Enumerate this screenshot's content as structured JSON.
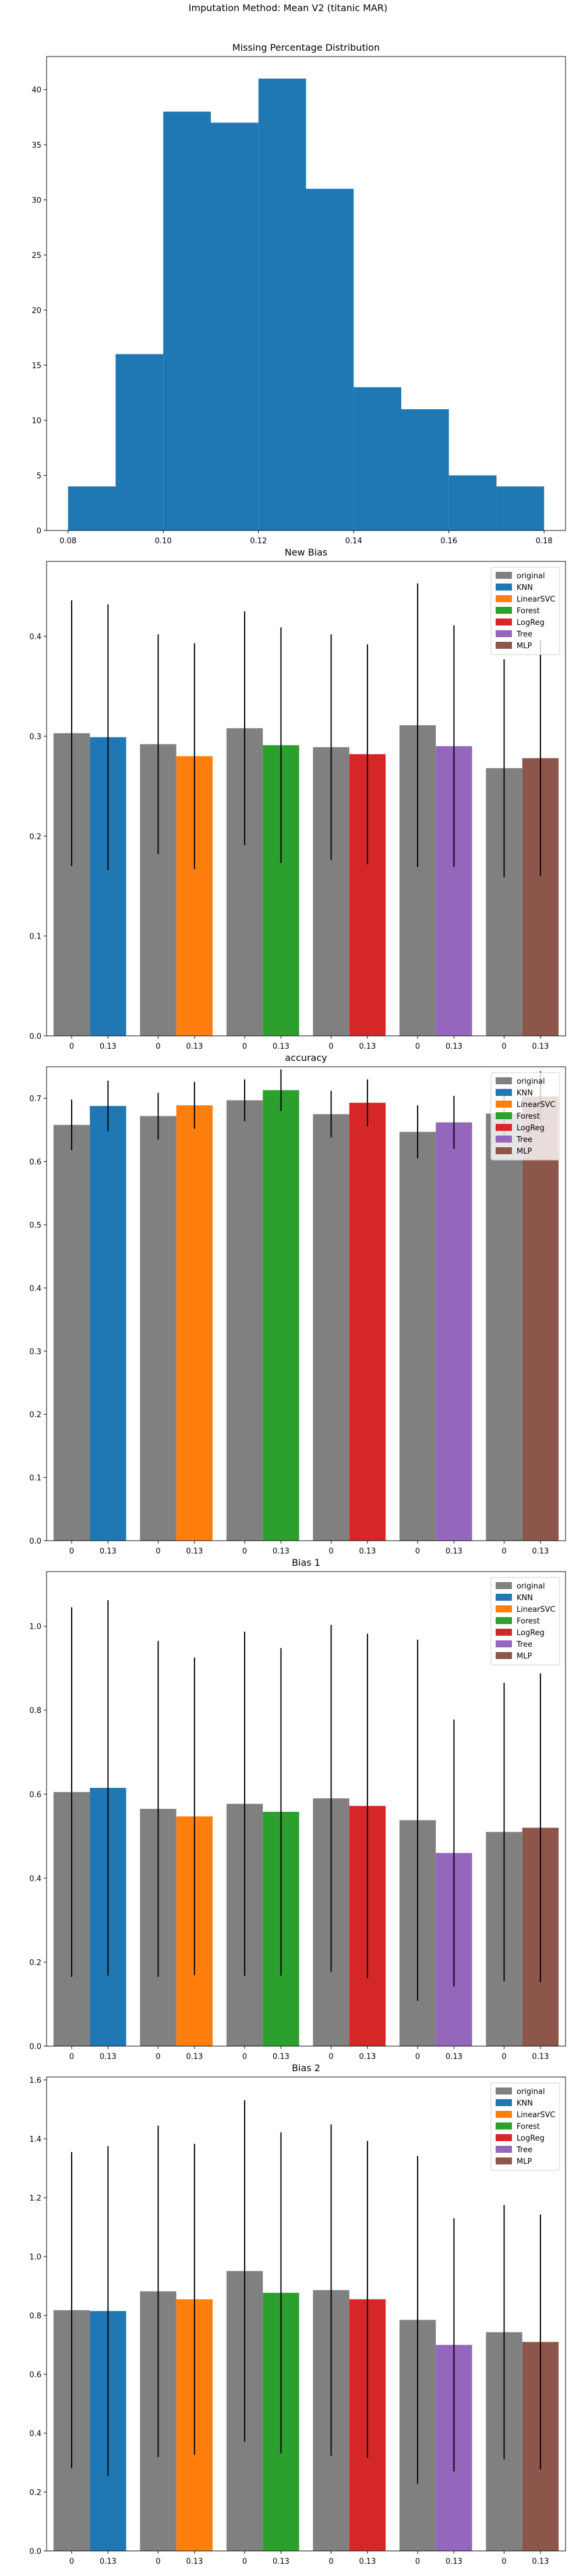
{
  "suptitle": "Imputation Method: Mean V2 (titanic MAR)",
  "legend_labels": [
    "original",
    "KNN",
    "LinearSVC",
    "Forest",
    "LogReg",
    "Tree",
    "MLP"
  ],
  "colors": {
    "original": "#808080",
    "KNN": "#1f77b4",
    "LinearSVC": "#ff7f0e",
    "Forest": "#2ca02c",
    "LogReg": "#d62728",
    "Tree": "#9467bd",
    "MLP": "#8c564b",
    "histogram": "#1f77b4"
  },
  "chart_data": [
    {
      "type": "histogram",
      "title": "Missing Percentage Distribution",
      "bin_edges": [
        0.08,
        0.09,
        0.1,
        0.11,
        0.12,
        0.13,
        0.14,
        0.15,
        0.16,
        0.17,
        0.18
      ],
      "counts": [
        4,
        16,
        38,
        37,
        41,
        31,
        13,
        11,
        5,
        4
      ],
      "xlim": [
        0.0755,
        0.1845
      ],
      "ylim": [
        0,
        43
      ],
      "xticks": [
        0.08,
        0.1,
        0.12,
        0.14,
        0.16,
        0.18
      ],
      "xtick_labels": [
        "0.08",
        "0.10",
        "0.12",
        "0.14",
        "0.16",
        "0.18"
      ],
      "yticks": [
        0,
        5,
        10,
        15,
        20,
        25,
        30,
        35,
        40
      ],
      "ytick_labels": [
        "0",
        "5",
        "10",
        "15",
        "20",
        "25",
        "30",
        "35",
        "40"
      ]
    },
    {
      "type": "bar",
      "title": "New Bias",
      "group_labels": [
        "0",
        "0.13"
      ],
      "series": [
        {
          "name": "KNN",
          "original": 0.303,
          "original_err": 0.133,
          "imputed": 0.299,
          "imputed_err": 0.133
        },
        {
          "name": "LinearSVC",
          "original": 0.292,
          "original_err": 0.11,
          "imputed": 0.28,
          "imputed_err": 0.113
        },
        {
          "name": "Forest",
          "original": 0.308,
          "original_err": 0.117,
          "imputed": 0.291,
          "imputed_err": 0.118
        },
        {
          "name": "LogReg",
          "original": 0.289,
          "original_err": 0.113,
          "imputed": 0.282,
          "imputed_err": 0.11
        },
        {
          "name": "Tree",
          "original": 0.311,
          "original_err": 0.142,
          "imputed": 0.29,
          "imputed_err": 0.121
        },
        {
          "name": "MLP",
          "original": 0.268,
          "original_err": 0.109,
          "imputed": 0.278,
          "imputed_err": 0.118
        }
      ],
      "ylim": [
        0,
        0.475
      ],
      "yticks": [
        0.0,
        0.1,
        0.2,
        0.3,
        0.4
      ],
      "ytick_labels": [
        "0.0",
        "0.1",
        "0.2",
        "0.3",
        "0.4"
      ]
    },
    {
      "type": "bar",
      "title": "accuracy",
      "group_labels": [
        "0",
        "0.13"
      ],
      "series": [
        {
          "name": "KNN",
          "original": 0.658,
          "original_err": 0.04,
          "imputed": 0.688,
          "imputed_err": 0.04
        },
        {
          "name": "LinearSVC",
          "original": 0.672,
          "original_err": 0.037,
          "imputed": 0.689,
          "imputed_err": 0.037
        },
        {
          "name": "Forest",
          "original": 0.697,
          "original_err": 0.033,
          "imputed": 0.713,
          "imputed_err": 0.033
        },
        {
          "name": "LogReg",
          "original": 0.675,
          "original_err": 0.037,
          "imputed": 0.693,
          "imputed_err": 0.037
        },
        {
          "name": "Tree",
          "original": 0.647,
          "original_err": 0.042,
          "imputed": 0.662,
          "imputed_err": 0.042
        },
        {
          "name": "MLP",
          "original": 0.676,
          "original_err": 0.04,
          "imputed": 0.703,
          "imputed_err": 0.04
        }
      ],
      "ylim": [
        0,
        0.75
      ],
      "yticks": [
        0.0,
        0.1,
        0.2,
        0.3,
        0.4,
        0.5,
        0.6,
        0.7
      ],
      "ytick_labels": [
        "0.0",
        "0.1",
        "0.2",
        "0.3",
        "0.4",
        "0.5",
        "0.6",
        "0.7"
      ]
    },
    {
      "type": "bar",
      "title": "Bias 1",
      "group_labels": [
        "0",
        "0.13"
      ],
      "series": [
        {
          "name": "KNN",
          "original": 0.605,
          "original_err": 0.44,
          "imputed": 0.615,
          "imputed_err": 0.447
        },
        {
          "name": "LinearSVC",
          "original": 0.565,
          "original_err": 0.4,
          "imputed": 0.547,
          "imputed_err": 0.378
        },
        {
          "name": "Forest",
          "original": 0.577,
          "original_err": 0.41,
          "imputed": 0.558,
          "imputed_err": 0.39
        },
        {
          "name": "LogReg",
          "original": 0.59,
          "original_err": 0.413,
          "imputed": 0.572,
          "imputed_err": 0.41
        },
        {
          "name": "Tree",
          "original": 0.538,
          "original_err": 0.43,
          "imputed": 0.46,
          "imputed_err": 0.318
        },
        {
          "name": "MLP",
          "original": 0.51,
          "original_err": 0.355,
          "imputed": 0.52,
          "imputed_err": 0.368
        }
      ],
      "ylim": [
        0,
        1.13
      ],
      "yticks": [
        0.0,
        0.2,
        0.4,
        0.6,
        0.8,
        1.0
      ],
      "ytick_labels": [
        "0.0",
        "0.2",
        "0.4",
        "0.6",
        "0.8",
        "1.0"
      ]
    },
    {
      "type": "bar",
      "title": "Bias 2",
      "group_labels": [
        "0",
        "0.13"
      ],
      "series": [
        {
          "name": "KNN",
          "original": 0.818,
          "original_err": 0.537,
          "imputed": 0.815,
          "imputed_err": 0.56
        },
        {
          "name": "LinearSVC",
          "original": 0.882,
          "original_err": 0.563,
          "imputed": 0.855,
          "imputed_err": 0.528
        },
        {
          "name": "Forest",
          "original": 0.951,
          "original_err": 0.58,
          "imputed": 0.877,
          "imputed_err": 0.545
        },
        {
          "name": "LogReg",
          "original": 0.886,
          "original_err": 0.563,
          "imputed": 0.855,
          "imputed_err": 0.538
        },
        {
          "name": "Tree",
          "original": 0.785,
          "original_err": 0.557,
          "imputed": 0.7,
          "imputed_err": 0.43
        },
        {
          "name": "MLP",
          "original": 0.743,
          "original_err": 0.432,
          "imputed": 0.71,
          "imputed_err": 0.433
        }
      ],
      "ylim": [
        0,
        1.61
      ],
      "yticks": [
        0.0,
        0.2,
        0.4,
        0.6,
        0.8,
        1.0,
        1.2,
        1.4,
        1.6
      ],
      "ytick_labels": [
        "0.0",
        "0.2",
        "0.4",
        "0.6",
        "0.8",
        "1.0",
        "1.2",
        "1.4",
        "1.6"
      ]
    }
  ]
}
